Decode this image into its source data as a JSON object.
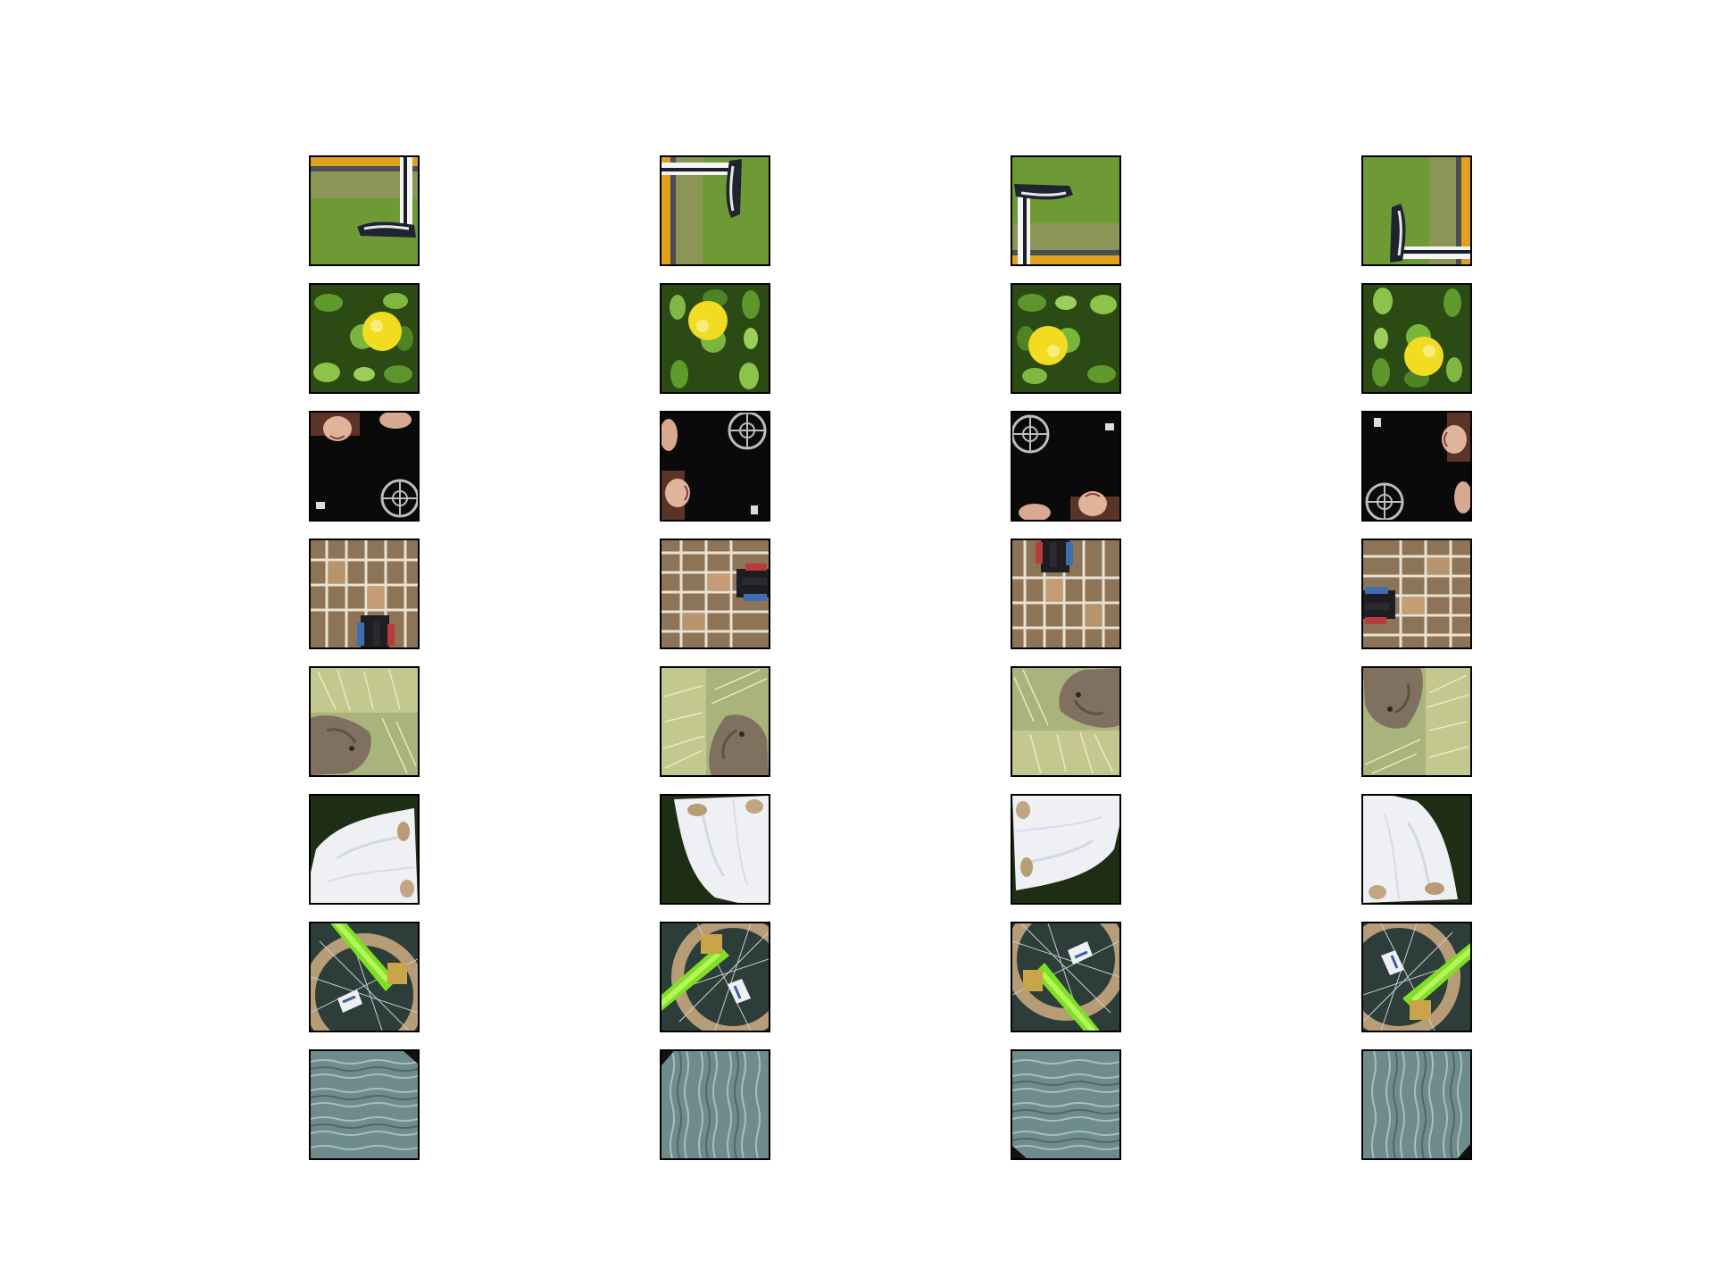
{
  "figure": {
    "rows": [
      {
        "subject": "grass-field-with-sneaker",
        "rotations": [
          0,
          90,
          180,
          270
        ]
      },
      {
        "subject": "yellow-fruit-among-leaves",
        "rotations": [
          0,
          90,
          180,
          270
        ]
      },
      {
        "subject": "people-in-dark-clothing",
        "rotations": [
          0,
          90,
          180,
          270
        ]
      },
      {
        "subject": "building-facade-with-people",
        "rotations": [
          0,
          90,
          180,
          270
        ]
      },
      {
        "subject": "animal-resting-in-grass",
        "rotations": [
          0,
          90,
          180,
          270
        ]
      },
      {
        "subject": "snow-patch-on-dark-ground",
        "rotations": [
          0,
          90,
          180,
          270
        ]
      },
      {
        "subject": "green-bike-fork-and-wheel",
        "rotations": [
          0,
          90,
          180,
          270
        ]
      },
      {
        "subject": "rippled-water-surface",
        "rotations": [
          0,
          90,
          180,
          270
        ]
      }
    ],
    "colors": {
      "border": "#000000",
      "background": "#ffffff"
    }
  }
}
